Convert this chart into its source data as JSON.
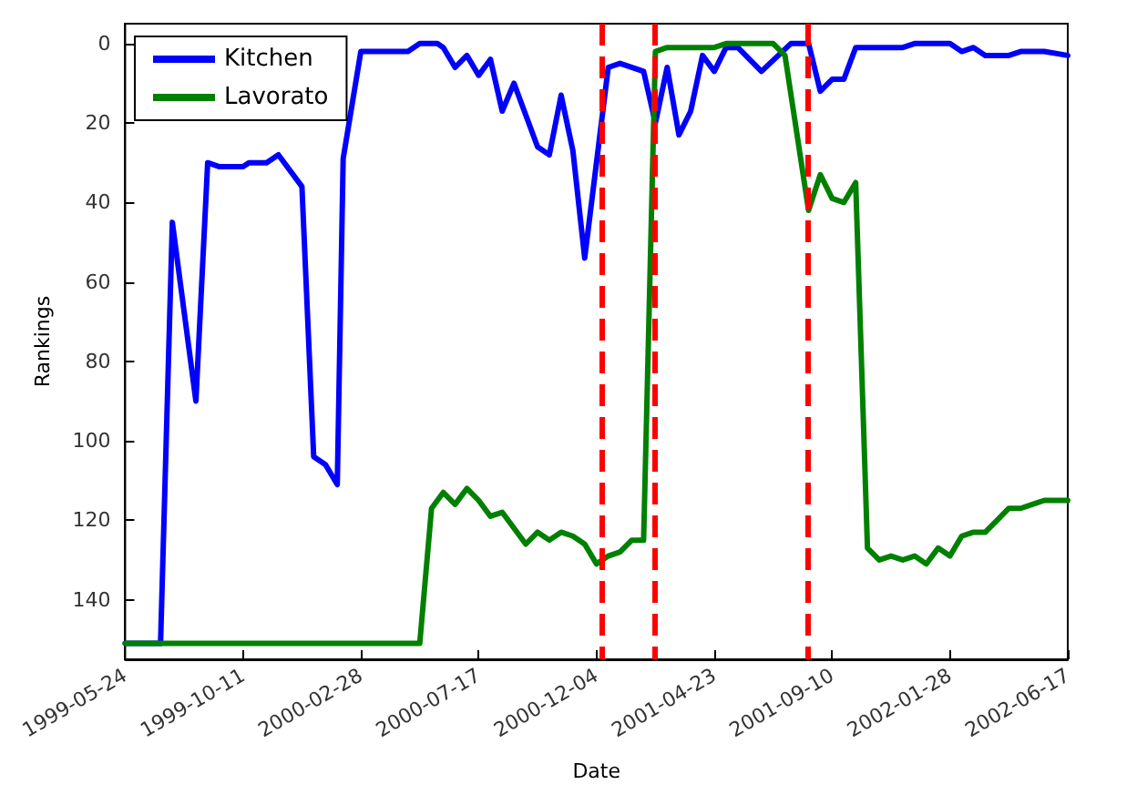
{
  "chart_data": {
    "type": "line",
    "xlabel": "Date",
    "ylabel": "Rankings",
    "xlim": [
      "1999-05-24",
      "2002-06-17"
    ],
    "xticks": [
      "1999-05-24",
      "1999-10-11",
      "2000-02-28",
      "2000-07-17",
      "2000-12-04",
      "2001-04-23",
      "2001-09-10",
      "2002-01-28",
      "2002-06-17"
    ],
    "ylim": [
      155,
      -5
    ],
    "yticks": [
      0,
      20,
      40,
      60,
      80,
      100,
      120,
      140
    ],
    "grid": false,
    "legend": "top left",
    "marker": "none",
    "line_style": "solid",
    "ref_lines": [
      {
        "axis": "x",
        "value": "2000-12-11",
        "label": null,
        "color": "#ff0000",
        "line_style": "dashed"
      },
      {
        "axis": "x",
        "value": "2001-02-12",
        "label": null,
        "color": "#ff0000",
        "line_style": "dashed"
      },
      {
        "axis": "x",
        "value": "2001-08-13",
        "label": null,
        "color": "#ff0000",
        "line_style": "dashed"
      }
    ],
    "series": [
      {
        "name": "Kitchen",
        "color": "#0000ff",
        "x": [
          "1999-05-24",
          "1999-07-05",
          "1999-07-19",
          "1999-08-16",
          "1999-08-30",
          "1999-09-13",
          "1999-10-11",
          "1999-10-18",
          "1999-11-08",
          "1999-11-22",
          "1999-12-20",
          "2000-01-03",
          "2000-01-17",
          "2000-01-31",
          "2000-02-07",
          "2000-02-28",
          "2000-04-24",
          "2000-05-08",
          "2000-05-29",
          "2000-06-05",
          "2000-06-19",
          "2000-07-03",
          "2000-07-17",
          "2000-07-31",
          "2000-08-14",
          "2000-08-28",
          "2000-09-25",
          "2000-10-09",
          "2000-10-23",
          "2000-11-06",
          "2000-11-20",
          "2000-12-18",
          "2001-01-01",
          "2001-01-29",
          "2001-02-12",
          "2001-02-26",
          "2001-03-12",
          "2001-03-26",
          "2001-04-09",
          "2001-04-23",
          "2001-05-07",
          "2001-05-21",
          "2001-06-18",
          "2001-07-23",
          "2001-08-13",
          "2001-08-27",
          "2001-09-10",
          "2001-09-24",
          "2001-10-08",
          "2001-12-03",
          "2001-12-17",
          "2002-01-28",
          "2002-02-11",
          "2002-02-25",
          "2002-03-11",
          "2002-04-08",
          "2002-04-22",
          "2002-05-20",
          "2002-06-17"
        ],
        "values": [
          151,
          151,
          45,
          90,
          30,
          31,
          31,
          30,
          30,
          28,
          36,
          104,
          106,
          111,
          29,
          2,
          2,
          0,
          0,
          1,
          6,
          3,
          8,
          4,
          17,
          10,
          26,
          28,
          13,
          27,
          54,
          6,
          5,
          7,
          20,
          6,
          23,
          17,
          3,
          7,
          1,
          1,
          7,
          0,
          0,
          12,
          9,
          9,
          1,
          1,
          0,
          0,
          2,
          1,
          3,
          3,
          2,
          2,
          3
        ]
      },
      {
        "name": "Lavorato",
        "color": "#008000",
        "x": [
          "1999-05-24",
          "2000-05-08",
          "2000-05-22",
          "2000-06-05",
          "2000-06-19",
          "2000-07-03",
          "2000-07-17",
          "2000-07-31",
          "2000-08-14",
          "2000-08-28",
          "2000-09-11",
          "2000-09-25",
          "2000-10-09",
          "2000-10-23",
          "2000-11-06",
          "2000-11-20",
          "2000-12-04",
          "2000-12-18",
          "2001-01-01",
          "2001-01-15",
          "2001-01-29",
          "2001-02-12",
          "2001-02-26",
          "2001-03-26",
          "2001-04-23",
          "2001-05-07",
          "2001-07-02",
          "2001-07-16",
          "2001-08-13",
          "2001-08-27",
          "2001-09-10",
          "2001-09-24",
          "2001-10-08",
          "2001-10-22",
          "2001-11-05",
          "2001-11-19",
          "2001-12-03",
          "2001-12-17",
          "2001-12-31",
          "2002-01-14",
          "2002-01-28",
          "2002-02-11",
          "2002-02-25",
          "2002-03-11",
          "2002-03-25",
          "2002-04-08",
          "2002-04-22",
          "2002-05-06",
          "2002-05-20",
          "2002-06-17"
        ],
        "values": [
          151,
          151,
          117,
          113,
          116,
          112,
          115,
          119,
          118,
          122,
          126,
          123,
          125,
          123,
          124,
          126,
          131,
          129,
          128,
          125,
          125,
          2,
          1,
          1,
          1,
          0,
          0,
          3,
          42,
          33,
          39,
          40,
          35,
          127,
          130,
          129,
          130,
          129,
          131,
          127,
          129,
          124,
          123,
          123,
          120,
          117,
          117,
          116,
          115,
          115
        ]
      }
    ]
  }
}
